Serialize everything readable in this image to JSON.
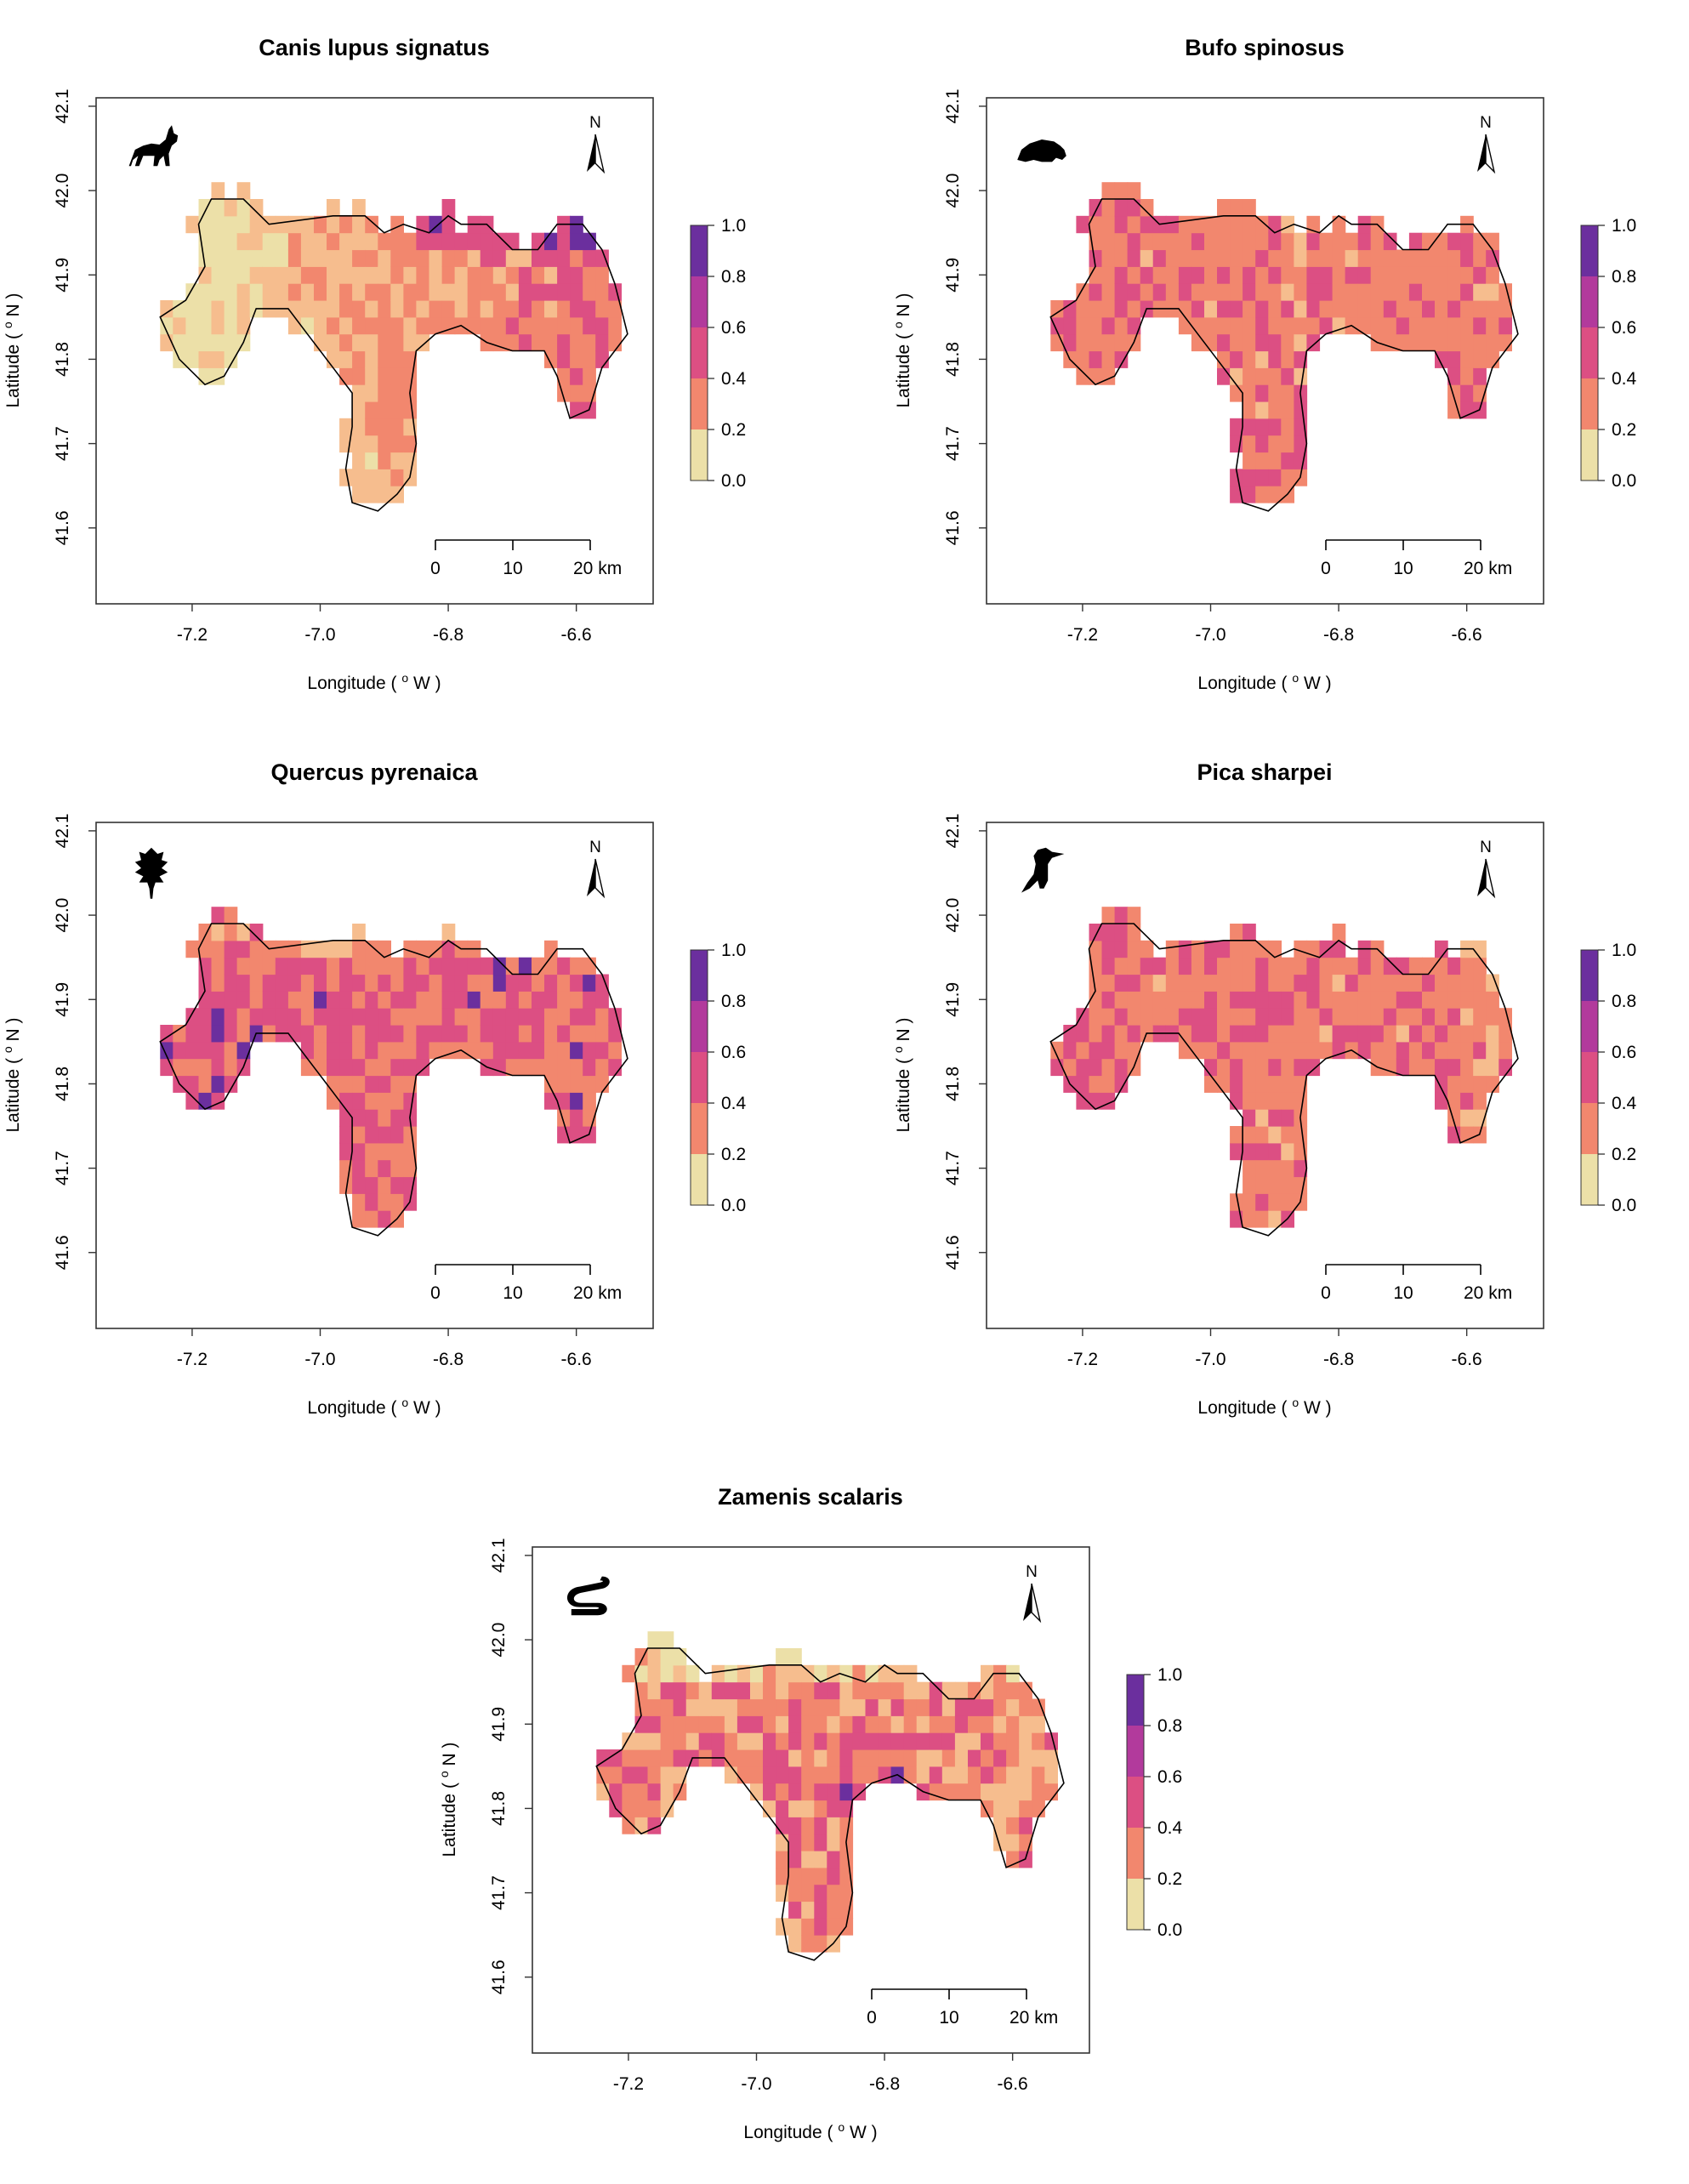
{
  "figure": {
    "common": {
      "x_ticks": [
        "-7.2",
        "-7.0",
        "-6.8",
        "-6.6"
      ],
      "y_ticks": [
        "41.6",
        "41.7",
        "41.8",
        "41.9",
        "42.0",
        "42.1"
      ],
      "x_label_prefix": "Longitude (",
      "x_label_o": "o",
      "x_label_suffix": " W )",
      "y_label_prefix": "Latitude (",
      "y_label_o": "o",
      "y_label_suffix": " N )",
      "north_label": "N",
      "scalebar_labels": [
        "0",
        "10",
        "20 km"
      ],
      "legend_labels": [
        "1.0",
        "0.8",
        "0.6",
        "0.4",
        "0.2",
        "0.0"
      ],
      "legend_colors": [
        "#6b2f9e",
        "#b23a9c",
        "#dc4f83",
        "#f2876e",
        "#f6bd8e",
        "#ece0a8"
      ]
    },
    "panels": [
      {
        "title": "Canis lupus signatus",
        "icon": "wolf-icon"
      },
      {
        "title": "Bufo spinosus",
        "icon": "toad-icon"
      },
      {
        "title": "Quercus pyrenaica",
        "icon": "oak-leaf-icon"
      },
      {
        "title": "Pica sharpei",
        "icon": "woodpecker-icon"
      },
      {
        "title": "Zamenis scalaris",
        "icon": "snake-icon"
      }
    ]
  },
  "chart_data": [
    {
      "type": "heatmap",
      "title": "Canis lupus signatus",
      "xlabel": "Longitude ( o W )",
      "ylabel": "Latitude ( o N )",
      "xlim": [
        -7.35,
        -6.48
      ],
      "ylim": [
        41.51,
        42.11
      ],
      "value_range": [
        0,
        1
      ],
      "dominant_range": [
        0.2,
        0.6
      ],
      "north_arrow": true,
      "scalebar_km": [
        0,
        10,
        20
      ]
    },
    {
      "type": "heatmap",
      "title": "Bufo spinosus",
      "xlabel": "Longitude ( o W )",
      "ylabel": "Latitude ( o N )",
      "xlim": [
        -7.35,
        -6.48
      ],
      "ylim": [
        41.51,
        42.11
      ],
      "value_range": [
        0,
        1
      ],
      "dominant_range": [
        0.4,
        0.8
      ],
      "north_arrow": true,
      "scalebar_km": [
        0,
        10,
        20
      ]
    },
    {
      "type": "heatmap",
      "title": "Quercus pyrenaica",
      "xlabel": "Longitude ( o W )",
      "ylabel": "Latitude ( o N )",
      "xlim": [
        -7.35,
        -6.48
      ],
      "ylim": [
        41.51,
        42.11
      ],
      "value_range": [
        0,
        1
      ],
      "dominant_range": [
        0.5,
        0.9
      ],
      "north_arrow": true,
      "scalebar_km": [
        0,
        10,
        20
      ]
    },
    {
      "type": "heatmap",
      "title": "Pica sharpei",
      "xlabel": "Longitude ( o W )",
      "ylabel": "Latitude ( o N )",
      "xlim": [
        -7.35,
        -6.48
      ],
      "ylim": [
        41.51,
        42.11
      ],
      "value_range": [
        0,
        1
      ],
      "dominant_range": [
        0.4,
        0.8
      ],
      "north_arrow": true,
      "scalebar_km": [
        0,
        10,
        20
      ]
    },
    {
      "type": "heatmap",
      "title": "Zamenis scalaris",
      "xlabel": "Longitude ( o W )",
      "ylabel": "Latitude ( o N )",
      "xlim": [
        -7.35,
        -6.48
      ],
      "ylim": [
        41.51,
        42.11
      ],
      "value_range": [
        0,
        1
      ],
      "dominant_range": [
        0.2,
        0.9
      ],
      "north_arrow": true,
      "scalebar_km": [
        0,
        10,
        20
      ]
    }
  ]
}
